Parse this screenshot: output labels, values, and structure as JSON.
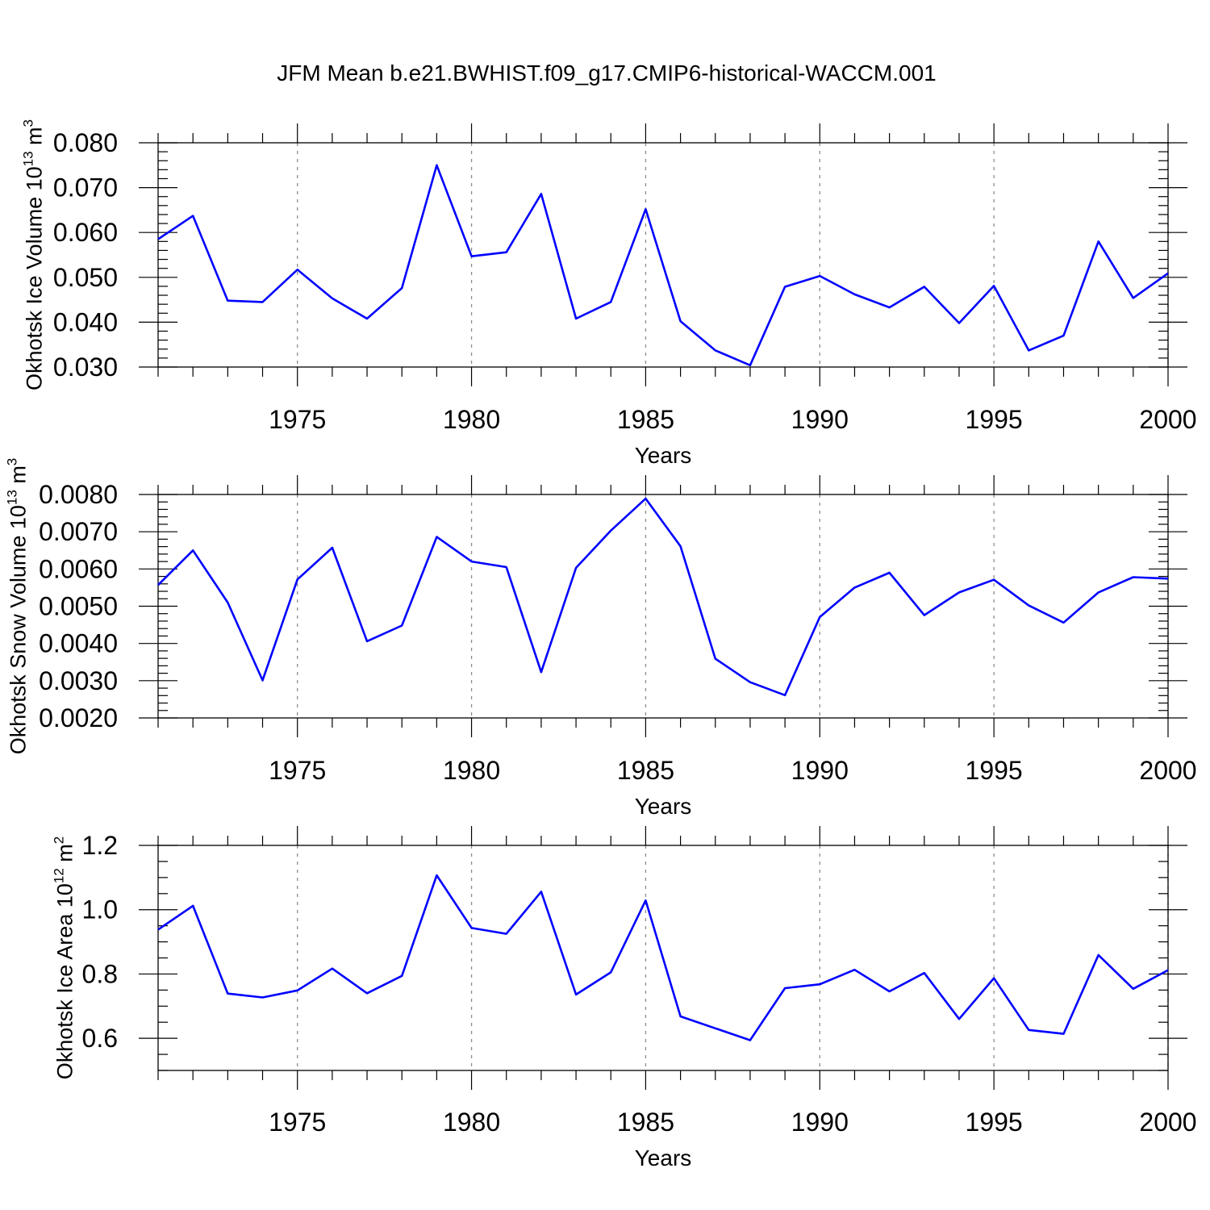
{
  "title": "JFM Mean b.e21.BWHIST.f09_g17.CMIP6-historical-WACCM.001",
  "colors": {
    "series": "#0000ff",
    "axis": "#000000",
    "grid": "#8c8c8c"
  },
  "chart_data": [
    {
      "type": "line",
      "ylabel": {
        "text": "Okhotsk Ice Volume 10",
        "exponent": "13",
        "unit": " m",
        "unit_exponent": "3"
      },
      "xlabel": "Years",
      "xlim": [
        1971,
        2000
      ],
      "ylim": [
        0.03,
        0.08
      ],
      "yticks": [
        0.03,
        0.04,
        0.05,
        0.06,
        0.07,
        0.08
      ],
      "ytick_labels": [
        "0.030",
        "0.040",
        "0.050",
        "0.060",
        "0.070",
        "0.080"
      ],
      "yminor": 0.002,
      "xticks": [
        1975,
        1980,
        1985,
        1990,
        1995,
        2000
      ],
      "xtick_labels": [
        "1975",
        "1980",
        "1985",
        "1990",
        "1995",
        "2000"
      ],
      "grid": "vertical-dashed-at-major",
      "series": [
        {
          "name": "Okhotsk Ice Volume",
          "x": [
            1971,
            1972,
            1973,
            1974,
            1975,
            1976,
            1977,
            1978,
            1979,
            1980,
            1981,
            1982,
            1983,
            1984,
            1985,
            1986,
            1987,
            1988,
            1989,
            1990,
            1991,
            1992,
            1993,
            1994,
            1995,
            1996,
            1997,
            1998,
            1999,
            2000
          ],
          "y": [
            0.0585,
            0.0637,
            0.0448,
            0.0445,
            0.0517,
            0.0453,
            0.0408,
            0.0476,
            0.075,
            0.0547,
            0.0556,
            0.0686,
            0.0408,
            0.0445,
            0.0652,
            0.0402,
            0.0337,
            0.0304,
            0.0479,
            0.0503,
            0.0462,
            0.0433,
            0.0479,
            0.0398,
            0.0481,
            0.0337,
            0.037,
            0.058,
            0.0454,
            0.0509
          ]
        }
      ]
    },
    {
      "type": "line",
      "ylabel": {
        "text": "Okhotsk Snow Volume 10",
        "exponent": "13",
        "unit": " m",
        "unit_exponent": "3"
      },
      "xlabel": "Years",
      "xlim": [
        1971,
        2000
      ],
      "ylim": [
        0.002,
        0.008
      ],
      "yticks": [
        0.002,
        0.003,
        0.004,
        0.005,
        0.006,
        0.007,
        0.008
      ],
      "ytick_labels": [
        "0.0020",
        "0.0030",
        "0.0040",
        "0.0050",
        "0.0060",
        "0.0070",
        "0.0080"
      ],
      "yminor": 0.0002,
      "xticks": [
        1975,
        1980,
        1985,
        1990,
        1995,
        2000
      ],
      "xtick_labels": [
        "1975",
        "1980",
        "1985",
        "1990",
        "1995",
        "2000"
      ],
      "grid": "vertical-dashed-at-major",
      "series": [
        {
          "name": "Okhotsk Snow Volume",
          "x": [
            1971,
            1972,
            1973,
            1974,
            1975,
            1976,
            1977,
            1978,
            1979,
            1980,
            1981,
            1982,
            1983,
            1984,
            1985,
            1986,
            1987,
            1988,
            1989,
            1990,
            1991,
            1992,
            1993,
            1994,
            1995,
            1996,
            1997,
            1998,
            1999,
            2000
          ],
          "y": [
            0.00557,
            0.0065,
            0.0051,
            0.00301,
            0.00572,
            0.00657,
            0.00406,
            0.00448,
            0.00686,
            0.0062,
            0.00605,
            0.00323,
            0.00603,
            0.00703,
            0.00789,
            0.00661,
            0.00359,
            0.00296,
            0.00261,
            0.00471,
            0.0055,
            0.0059,
            0.00476,
            0.00537,
            0.00571,
            0.00502,
            0.00456,
            0.00537,
            0.00578,
            0.00574
          ]
        }
      ]
    },
    {
      "type": "line",
      "ylabel": {
        "text": "Okhotsk Ice Area 10",
        "exponent": "12",
        "unit": " m",
        "unit_exponent": "2"
      },
      "xlabel": "Years",
      "xlim": [
        1971,
        2000
      ],
      "ylim": [
        0.5,
        1.2
      ],
      "yticks": [
        0.6,
        0.8,
        1.0,
        1.2
      ],
      "ytick_labels": [
        "0.6",
        "0.8",
        "1.0",
        "1.2"
      ],
      "yminor": 0.05,
      "xticks": [
        1975,
        1980,
        1985,
        1990,
        1995,
        2000
      ],
      "xtick_labels": [
        "1975",
        "1980",
        "1985",
        "1990",
        "1995",
        "2000"
      ],
      "grid": "vertical-dashed-at-major",
      "series": [
        {
          "name": "Okhotsk Ice Area",
          "x": [
            1971,
            1972,
            1973,
            1974,
            1975,
            1976,
            1977,
            1978,
            1979,
            1980,
            1981,
            1982,
            1983,
            1984,
            1985,
            1986,
            1987,
            1988,
            1989,
            1990,
            1991,
            1992,
            1993,
            1994,
            1995,
            1996,
            1997,
            1998,
            1999,
            2000
          ],
          "y": [
            0.938,
            1.012,
            0.739,
            0.727,
            0.749,
            0.817,
            0.74,
            0.794,
            1.107,
            0.943,
            0.925,
            1.056,
            0.736,
            0.805,
            1.029,
            0.668,
            0.631,
            0.594,
            0.756,
            0.768,
            0.813,
            0.746,
            0.803,
            0.66,
            0.787,
            0.626,
            0.614,
            0.859,
            0.754,
            0.812
          ]
        }
      ]
    }
  ]
}
